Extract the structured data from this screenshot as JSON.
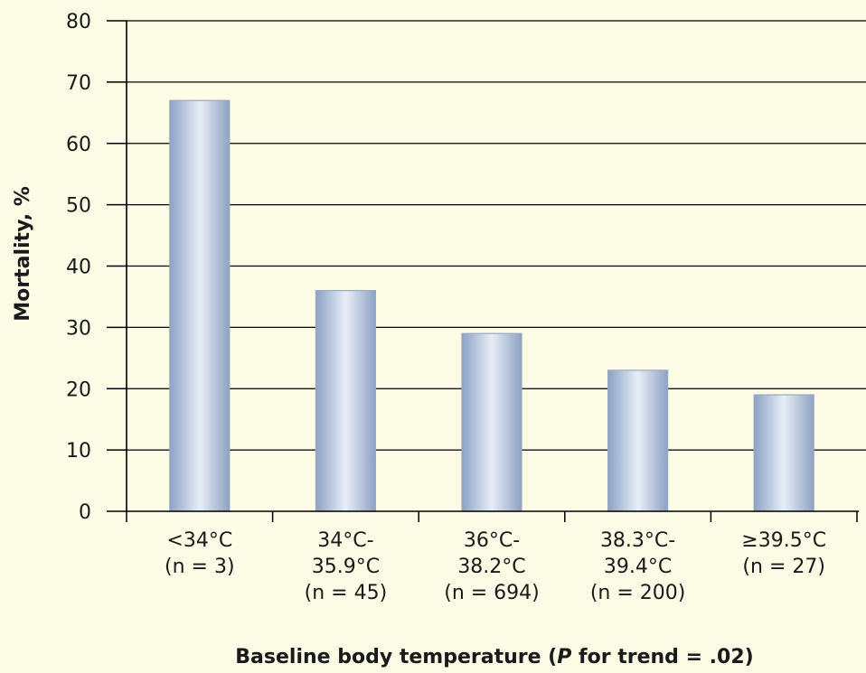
{
  "chart_data": {
    "type": "bar",
    "categories": [
      [
        "<34°C",
        "(n = 3)"
      ],
      [
        "34°C-",
        "35.9°C",
        "(n = 45)"
      ],
      [
        "36°C-",
        "38.2°C",
        "(n = 694)"
      ],
      [
        "38.3°C-",
        "39.4°C",
        "(n = 200)"
      ],
      [
        "≥39.5°C",
        "(n = 27)"
      ]
    ],
    "values": [
      67,
      36,
      29,
      23,
      19
    ],
    "title": "",
    "xlabel": {
      "before": "Baseline body temperature (",
      "italic": "P",
      "after": " for trend = .02)"
    },
    "ylabel": "Mortality, %",
    "ylim": [
      0,
      80
    ],
    "yticks": [
      0,
      10,
      20,
      30,
      40,
      50,
      60,
      70,
      80
    ],
    "grid": true,
    "colors": {
      "background": "#fbfbe6",
      "bar_edge": "#9aa8be",
      "bar_dark": "#8da2c4",
      "bar_light": "#e8eef7",
      "axis": "#000000"
    }
  }
}
